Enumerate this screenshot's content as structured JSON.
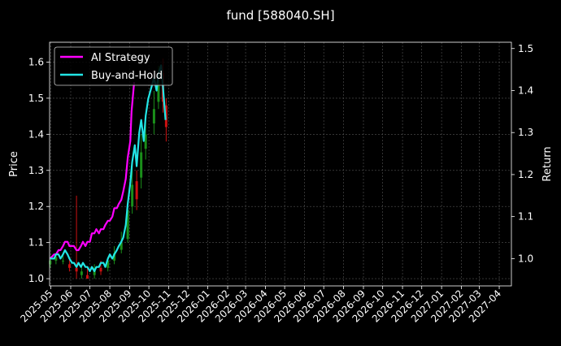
{
  "chart_data": {
    "type": "line",
    "title": "fund [588040.SH]",
    "ylabel_left": "Price",
    "ylabel_right": "Return",
    "x_type": "date",
    "xlim": [
      "2025-04-29",
      "2027-04-20"
    ],
    "ylim_left": [
      0.98,
      1.655
    ],
    "ylim_right": [
      0.935,
      1.515
    ],
    "grid": true,
    "legend_position": "top-left",
    "left_ticks": [
      1.0,
      1.1,
      1.2,
      1.3,
      1.4,
      1.5,
      1.6
    ],
    "left_tick_labels": [
      "1.0",
      "1.1",
      "1.2",
      "1.3",
      "1.4",
      "1.5",
      "1.6"
    ],
    "right_ticks": [
      1.0,
      1.1,
      1.2,
      1.3,
      1.4,
      1.5
    ],
    "right_tick_labels": [
      "1.0",
      "1.1",
      "1.2",
      "1.3",
      "1.4",
      "1.5"
    ],
    "x_ticks": [
      "2025-05-01",
      "2025-06-01",
      "2025-07-01",
      "2025-08-01",
      "2025-09-01",
      "2025-10-01",
      "2025-11-01",
      "2025-12-01",
      "2026-01-01",
      "2026-02-01",
      "2026-03-01",
      "2026-04-01",
      "2026-05-01",
      "2026-06-01",
      "2026-07-01",
      "2026-08-01",
      "2026-09-01",
      "2026-10-01",
      "2026-11-01",
      "2026-12-01",
      "2027-01-01",
      "2027-02-01",
      "2027-03-01",
      "2027-04-01"
    ],
    "x_tick_labels": [
      "2025-05",
      "2025-06",
      "2025-07",
      "2025-08",
      "2025-09",
      "2025-10",
      "2025-11",
      "2025-12",
      "2026-01",
      "2026-02",
      "2026-03",
      "2026-04",
      "2026-05",
      "2026-06",
      "2026-07",
      "2026-08",
      "2026-09",
      "2026-10",
      "2026-11",
      "2026-12",
      "2027-01",
      "2027-02",
      "2027-03",
      "2027-04"
    ],
    "colors": {
      "background": "#000000",
      "ai_strategy": "#ff00ff",
      "buy_and_hold": "#22e5e5",
      "candle_up": "#1a8f1a",
      "candle_down": "#cc1111",
      "grid": "#555555"
    },
    "series": [
      {
        "name": "AI Strategy",
        "axis": "right",
        "x": [
          "2025-04-30",
          "2025-05-06",
          "2025-05-09",
          "2025-05-13",
          "2025-05-16",
          "2025-05-20",
          "2025-05-23",
          "2025-05-27",
          "2025-05-30",
          "2025-06-03",
          "2025-06-06",
          "2025-06-10",
          "2025-06-13",
          "2025-06-17",
          "2025-06-20",
          "2025-06-24",
          "2025-06-27",
          "2025-07-01",
          "2025-07-04",
          "2025-07-08",
          "2025-07-11",
          "2025-07-15",
          "2025-07-18",
          "2025-07-22",
          "2025-07-25",
          "2025-07-29",
          "2025-08-01",
          "2025-08-05",
          "2025-08-08",
          "2025-08-12",
          "2025-08-15",
          "2025-08-19",
          "2025-08-22",
          "2025-08-26",
          "2025-08-29",
          "2025-09-02",
          "2025-09-04",
          "2025-09-08"
        ],
        "values": [
          1.0,
          1.01,
          1.01,
          1.02,
          1.02,
          1.03,
          1.04,
          1.04,
          1.03,
          1.03,
          1.03,
          1.02,
          1.02,
          1.03,
          1.04,
          1.03,
          1.04,
          1.04,
          1.06,
          1.06,
          1.07,
          1.06,
          1.07,
          1.07,
          1.08,
          1.09,
          1.09,
          1.1,
          1.12,
          1.12,
          1.13,
          1.14,
          1.16,
          1.19,
          1.24,
          1.28,
          1.35,
          1.42
        ]
      },
      {
        "name": "Buy-and-Hold",
        "axis": "right",
        "x": [
          "2025-04-30",
          "2025-05-06",
          "2025-05-09",
          "2025-05-13",
          "2025-05-16",
          "2025-05-20",
          "2025-05-23",
          "2025-05-27",
          "2025-05-30",
          "2025-06-03",
          "2025-06-06",
          "2025-06-10",
          "2025-06-13",
          "2025-06-17",
          "2025-06-20",
          "2025-06-24",
          "2025-06-27",
          "2025-07-01",
          "2025-07-04",
          "2025-07-08",
          "2025-07-11",
          "2025-07-15",
          "2025-07-18",
          "2025-07-22",
          "2025-07-25",
          "2025-07-29",
          "2025-08-01",
          "2025-08-05",
          "2025-08-08",
          "2025-08-12",
          "2025-08-15",
          "2025-08-19",
          "2025-08-22",
          "2025-08-26",
          "2025-08-29",
          "2025-09-02",
          "2025-09-05",
          "2025-09-09",
          "2025-09-12",
          "2025-09-16",
          "2025-09-19",
          "2025-09-23",
          "2025-09-26",
          "2025-09-30",
          "2025-10-09",
          "2025-10-13",
          "2025-10-16",
          "2025-10-20",
          "2025-10-23",
          "2025-10-27"
        ],
        "values": [
          1.0,
          1.0,
          1.01,
          1.01,
          1.0,
          1.01,
          1.02,
          1.01,
          1.0,
          0.99,
          0.99,
          0.98,
          0.99,
          0.98,
          0.99,
          0.98,
          0.98,
          0.97,
          0.98,
          0.97,
          0.98,
          0.98,
          0.99,
          0.99,
          0.98,
          1.0,
          1.01,
          1.0,
          1.01,
          1.02,
          1.03,
          1.04,
          1.05,
          1.08,
          1.13,
          1.18,
          1.23,
          1.27,
          1.22,
          1.3,
          1.33,
          1.28,
          1.34,
          1.38,
          1.43,
          1.4,
          1.44,
          1.46,
          1.41,
          1.33
        ]
      }
    ],
    "candles": {
      "axis": "left",
      "x": [
        "2025-04-30",
        "2025-05-09",
        "2025-05-20",
        "2025-05-30",
        "2025-06-10",
        "2025-06-18",
        "2025-06-27",
        "2025-07-08",
        "2025-07-18",
        "2025-07-29",
        "2025-08-08",
        "2025-08-19",
        "2025-08-29",
        "2025-09-05",
        "2025-09-12",
        "2025-09-19",
        "2025-09-26",
        "2025-10-09",
        "2025-10-16",
        "2025-10-23",
        "2025-10-28"
      ],
      "open": [
        1.04,
        1.05,
        1.05,
        1.04,
        1.03,
        1.01,
        1.01,
        1.01,
        1.03,
        1.03,
        1.05,
        1.08,
        1.11,
        1.2,
        1.27,
        1.28,
        1.36,
        1.43,
        1.49,
        1.57,
        1.48
      ],
      "close": [
        1.05,
        1.06,
        1.05,
        1.03,
        1.02,
        1.02,
        1.0,
        1.03,
        1.02,
        1.05,
        1.07,
        1.1,
        1.19,
        1.26,
        1.22,
        1.35,
        1.4,
        1.47,
        1.55,
        1.49,
        1.42
      ],
      "high": [
        1.06,
        1.07,
        1.07,
        1.06,
        1.23,
        1.04,
        1.03,
        1.04,
        1.05,
        1.06,
        1.09,
        1.13,
        1.21,
        1.32,
        1.3,
        1.4,
        1.44,
        1.52,
        1.59,
        1.61,
        1.5
      ],
      "low": [
        1.03,
        1.04,
        1.04,
        1.02,
        1.0,
        1.0,
        1.0,
        1.0,
        1.01,
        1.02,
        1.04,
        1.07,
        1.1,
        1.18,
        1.19,
        1.25,
        1.33,
        1.4,
        1.47,
        1.46,
        1.38
      ]
    }
  }
}
